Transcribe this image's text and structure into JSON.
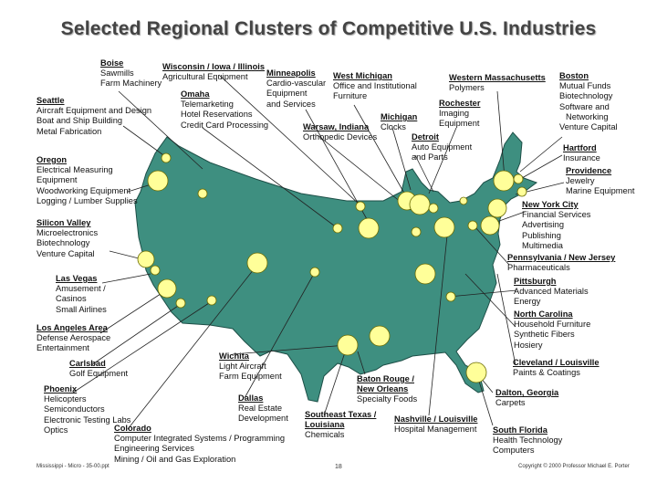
{
  "title": "Selected Regional Clusters of Competitive U.S. Industries",
  "colors": {
    "land": "#3e8f80",
    "land_border": "#1d4f47",
    "dot": "#ffff99",
    "dot_border": "#6b6b00",
    "leader": "#222222"
  },
  "clusters": [
    {
      "key": "boise",
      "name": "Boise",
      "items": [
        "Sawmills",
        "Farm Machinery"
      ]
    },
    {
      "key": "wisconsin",
      "name": "Wisconsin / Iowa / Illinois",
      "items": [
        "Agricultural Equipment"
      ]
    },
    {
      "key": "omaha",
      "name": "Omaha",
      "items": [
        "Telemarketing",
        "Hotel Reservations",
        "Credit Card Processing"
      ]
    },
    {
      "key": "minneapolis",
      "name": "Minneapolis",
      "items": [
        "Cardio-vascular",
        "Equipment",
        "and Services"
      ]
    },
    {
      "key": "westmichigan",
      "name": "West Michigan",
      "items": [
        "Office and Institutional",
        "Furniture"
      ]
    },
    {
      "key": "westmass",
      "name": "Western Massachusetts",
      "items": [
        "Polymers"
      ]
    },
    {
      "key": "boston",
      "name": "Boston",
      "items": [
        "Mutual Funds",
        "Biotechnology",
        "Software and",
        "  Networking",
        "Venture Capital"
      ]
    },
    {
      "key": "seattle",
      "name": "Seattle",
      "items": [
        "Aircraft Equipment and Design",
        "Boat and Ship Building",
        "Metal Fabrication"
      ]
    },
    {
      "key": "rochester",
      "name": "Rochester",
      "items": [
        "Imaging",
        "Equipment"
      ]
    },
    {
      "key": "michigan",
      "name": "Michigan",
      "items": [
        "Clocks"
      ]
    },
    {
      "key": "warsaw",
      "name": "Warsaw, Indiana",
      "items": [
        "Orthopedic Devices"
      ]
    },
    {
      "key": "detroit",
      "name": "Detroit",
      "items": [
        "Auto Equipment",
        "and Parts"
      ]
    },
    {
      "key": "hartford",
      "name": "Hartford",
      "items": [
        "Insurance"
      ]
    },
    {
      "key": "providence",
      "name": "Providence",
      "items": [
        "Jewelry",
        "Marine Equipment"
      ]
    },
    {
      "key": "oregon",
      "name": "Oregon",
      "items": [
        "Electrical Measuring",
        "Equipment",
        "Woodworking Equipment",
        "Logging / Lumber Supplies"
      ]
    },
    {
      "key": "nyc",
      "name": "New York City",
      "items": [
        "Financial Services",
        "Advertising",
        "Publishing",
        "Multimedia"
      ]
    },
    {
      "key": "siliconvalley",
      "name": "Silicon Valley",
      "items": [
        "Microelectronics",
        "Biotechnology",
        "Venture Capital"
      ]
    },
    {
      "key": "penn",
      "name": "Pennsylvania / New Jersey",
      "items": [
        "Pharmaceuticals"
      ]
    },
    {
      "key": "pittsburgh",
      "name": "Pittsburgh",
      "items": [
        "Advanced Materials",
        "Energy"
      ]
    },
    {
      "key": "lasvegas",
      "name": "Las Vegas",
      "items": [
        "Amusement /",
        "Casinos",
        "Small Airlines"
      ]
    },
    {
      "key": "northcarolina",
      "name": "North Carolina",
      "items": [
        "Household Furniture",
        "Synthetic Fibers",
        "Hosiery"
      ]
    },
    {
      "key": "la",
      "name": "Los Angeles Area",
      "items": [
        "Defense Aerospace",
        "Entertainment"
      ]
    },
    {
      "key": "wichita",
      "name": "Wichita",
      "items": [
        "Light Aircraft",
        "Farm Equipment"
      ]
    },
    {
      "key": "carlsbad",
      "name": "Carlsbad",
      "items": [
        "Golf Equipment"
      ]
    },
    {
      "key": "cleveland",
      "name": "Cleveland / Louisville",
      "items": [
        "Paints & Coatings"
      ]
    },
    {
      "key": "batonrouge",
      "name": "Baton Rouge /",
      "items": [
        "New Orleans",
        "Specialty Foods"
      ]
    },
    {
      "key": "phoenix",
      "name": "Phoenix",
      "items": [
        "Helicopters",
        "Semiconductors",
        "Electronic Testing Labs",
        "Optics"
      ]
    },
    {
      "key": "dallas",
      "name": "Dallas",
      "items": [
        "Real Estate",
        "Development"
      ]
    },
    {
      "key": "dalton",
      "name": "Dalton, Georgia",
      "items": [
        "Carpets"
      ]
    },
    {
      "key": "setexas",
      "name": "Southeast Texas /",
      "items": [
        "Louisiana",
        "Chemicals"
      ]
    },
    {
      "key": "nashville",
      "name": "Nashville / Louisville",
      "items": [
        "Hospital Management"
      ]
    },
    {
      "key": "colorado",
      "name": "Colorado",
      "items": [
        "Computer Integrated Systems / Programming",
        "Engineering Services",
        "Mining / Oil and Gas Exploration"
      ]
    },
    {
      "key": "southflorida",
      "name": "South Florida",
      "items": [
        "Health Technology",
        "Computers"
      ]
    }
  ],
  "footer": {
    "left": "Mississippi - Micro - 35-00.ppt",
    "center": "18",
    "right": "Copyright © 2000 Professor Michael E. Porter"
  }
}
